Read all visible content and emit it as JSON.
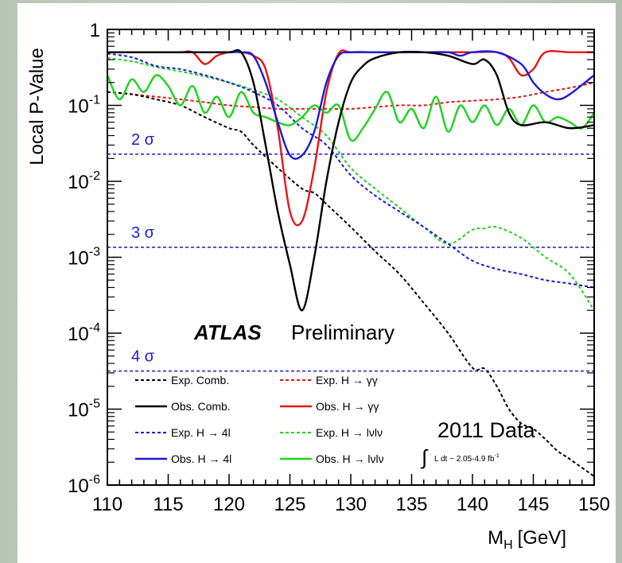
{
  "chart_data": {
    "type": "line",
    "ylabel": "Local P-Value",
    "xlabel": "M",
    "xlabel_sub": "H",
    "xlabel_unit": "[GeV]",
    "xlim": [
      110,
      150
    ],
    "ylim": [
      1e-06,
      1
    ],
    "y_scale": "log",
    "x_ticks": [
      "110",
      "115",
      "120",
      "125",
      "130",
      "135",
      "140",
      "145",
      "150"
    ],
    "y_ticks": [
      {
        "base": "1",
        "exp": ""
      },
      {
        "base": "10",
        "exp": "-1"
      },
      {
        "base": "10",
        "exp": "-2"
      },
      {
        "base": "10",
        "exp": "-3"
      },
      {
        "base": "10",
        "exp": "-4"
      },
      {
        "base": "10",
        "exp": "-5"
      },
      {
        "base": "10",
        "exp": "-6"
      }
    ],
    "sigma_lines": [
      {
        "label": "2 σ",
        "p": 0.0228
      },
      {
        "label": "3 σ",
        "p": 0.00135
      },
      {
        "label": "4 σ",
        "p": 3.17e-05
      }
    ],
    "atlas_label": "ATLAS",
    "preliminary_label": "Preliminary",
    "data_label": "2011 Data",
    "lumi_label": "L dt ~ 2.05-4.9 fb",
    "lumi_sup": "-1",
    "series": [
      {
        "name": "Exp. Comb.",
        "color": "#000000",
        "style": "dashed",
        "x": [
          110,
          112,
          114,
          116,
          118,
          120,
          121,
          122,
          124,
          126,
          127,
          128,
          130,
          132,
          134,
          136,
          138,
          140,
          141,
          142,
          143,
          144,
          145,
          146,
          147,
          148,
          150
        ],
        "y": [
          0.15,
          0.14,
          0.12,
          0.1,
          0.07,
          0.05,
          0.045,
          0.03,
          0.015,
          0.008,
          0.007,
          0.005,
          0.0025,
          0.0012,
          0.0006,
          0.00025,
          0.0001,
          3.5e-05,
          3.4e-05,
          2e-05,
          1e-05,
          6.5e-06,
          5.5e-06,
          4e-06,
          2.8e-06,
          2.2e-06,
          1.3e-06
        ]
      },
      {
        "name": "Obs. Comb.",
        "color": "#000000",
        "style": "solid",
        "x": [
          110,
          112,
          114,
          116,
          118,
          120,
          121,
          122,
          123,
          124,
          125,
          126,
          127,
          128,
          129,
          130,
          131,
          132,
          134,
          136,
          138,
          140,
          141,
          142,
          143,
          144,
          146,
          148,
          150
        ],
        "y": [
          0.5,
          0.5,
          0.5,
          0.5,
          0.5,
          0.5,
          0.5,
          0.2,
          0.03,
          0.004,
          0.0008,
          0.0002,
          0.001,
          0.01,
          0.06,
          0.2,
          0.33,
          0.42,
          0.5,
          0.5,
          0.45,
          0.35,
          0.4,
          0.25,
          0.08,
          0.055,
          0.06,
          0.05,
          0.055
        ]
      },
      {
        "name": "Exp. H → 4l",
        "color": "#1a1ad6",
        "style": "dashed",
        "x": [
          110,
          112,
          114,
          116,
          118,
          120,
          122,
          124,
          126,
          128,
          130,
          132,
          134,
          136,
          138,
          140,
          142,
          144,
          146,
          148,
          150
        ],
        "y": [
          0.48,
          0.43,
          0.33,
          0.3,
          0.25,
          0.2,
          0.15,
          0.1,
          0.05,
          0.03,
          0.012,
          0.0065,
          0.004,
          0.0025,
          0.0015,
          0.0009,
          0.0007,
          0.0006,
          0.0005,
          0.00045,
          0.0004
        ]
      },
      {
        "name": "Obs. H → 4l",
        "color": "#1a1ad6",
        "style": "solid",
        "x": [
          110,
          112,
          114,
          116,
          118,
          120,
          121,
          122,
          123,
          124,
          125,
          126,
          127,
          128,
          129,
          130,
          132,
          134,
          136,
          138,
          139,
          140,
          142,
          144,
          145,
          146,
          147,
          148,
          150
        ],
        "y": [
          0.5,
          0.5,
          0.5,
          0.5,
          0.5,
          0.5,
          0.5,
          0.45,
          0.2,
          0.06,
          0.022,
          0.022,
          0.045,
          0.2,
          0.45,
          0.5,
          0.5,
          0.5,
          0.5,
          0.5,
          0.45,
          0.5,
          0.5,
          0.35,
          0.2,
          0.14,
          0.12,
          0.14,
          0.25
        ]
      },
      {
        "name": "Exp. H → γγ",
        "color": "#e81414",
        "style": "dashed",
        "x": [
          110,
          112,
          114,
          116,
          118,
          120,
          122,
          124,
          126,
          128,
          130,
          132,
          134,
          136,
          138,
          140,
          142,
          144,
          146,
          148,
          150
        ],
        "y": [
          0.15,
          0.14,
          0.13,
          0.12,
          0.11,
          0.1,
          0.095,
          0.09,
          0.09,
          0.09,
          0.09,
          0.095,
          0.1,
          0.1,
          0.11,
          0.115,
          0.12,
          0.13,
          0.15,
          0.17,
          0.2
        ]
      },
      {
        "name": "Obs. H → γγ",
        "color": "#e81414",
        "style": "solid",
        "x": [
          110,
          112,
          114,
          116,
          117,
          118,
          119,
          120,
          121,
          122,
          123,
          124,
          125,
          126,
          127,
          128,
          129,
          130,
          132,
          134,
          136,
          138,
          140,
          142,
          143,
          144,
          145,
          146,
          148,
          150
        ],
        "y": [
          0.5,
          0.5,
          0.5,
          0.5,
          0.5,
          0.35,
          0.45,
          0.5,
          0.5,
          0.45,
          0.3,
          0.05,
          0.004,
          0.003,
          0.015,
          0.15,
          0.48,
          0.5,
          0.5,
          0.5,
          0.5,
          0.5,
          0.5,
          0.5,
          0.42,
          0.25,
          0.3,
          0.5,
          0.5,
          0.5
        ]
      },
      {
        "name": "Exp. H → lνlν",
        "color": "#1cd41c",
        "style": "dashed",
        "x": [
          110,
          112,
          114,
          116,
          118,
          120,
          122,
          124,
          126,
          128,
          130,
          132,
          134,
          136,
          138,
          140,
          141,
          142,
          144,
          146,
          148,
          150
        ],
        "y": [
          0.42,
          0.38,
          0.32,
          0.28,
          0.24,
          0.2,
          0.16,
          0.12,
          0.07,
          0.04,
          0.015,
          0.008,
          0.0045,
          0.0025,
          0.0015,
          0.0023,
          0.0024,
          0.0025,
          0.0018,
          0.001,
          0.0006,
          0.0002
        ]
      },
      {
        "name": "Obs. H → lνlν",
        "color": "#1cd41c",
        "style": "solid",
        "x": [
          110,
          111,
          112,
          113,
          114,
          115,
          116,
          117,
          118,
          119,
          120,
          121,
          122,
          123,
          124,
          125,
          126,
          127,
          128,
          129,
          130,
          131,
          132,
          133,
          134,
          135,
          136,
          137,
          138,
          139,
          140,
          141,
          142,
          143,
          144,
          145,
          146,
          147,
          148,
          149,
          150
        ],
        "y": [
          0.25,
          0.12,
          0.22,
          0.15,
          0.25,
          0.18,
          0.1,
          0.18,
          0.08,
          0.13,
          0.07,
          0.15,
          0.08,
          0.07,
          0.06,
          0.055,
          0.07,
          0.1,
          0.08,
          0.1,
          0.035,
          0.05,
          0.09,
          0.15,
          0.06,
          0.09,
          0.05,
          0.13,
          0.045,
          0.1,
          0.06,
          0.1,
          0.055,
          0.09,
          0.055,
          0.1,
          0.06,
          0.07,
          0.06,
          0.05,
          0.08
        ]
      }
    ]
  }
}
